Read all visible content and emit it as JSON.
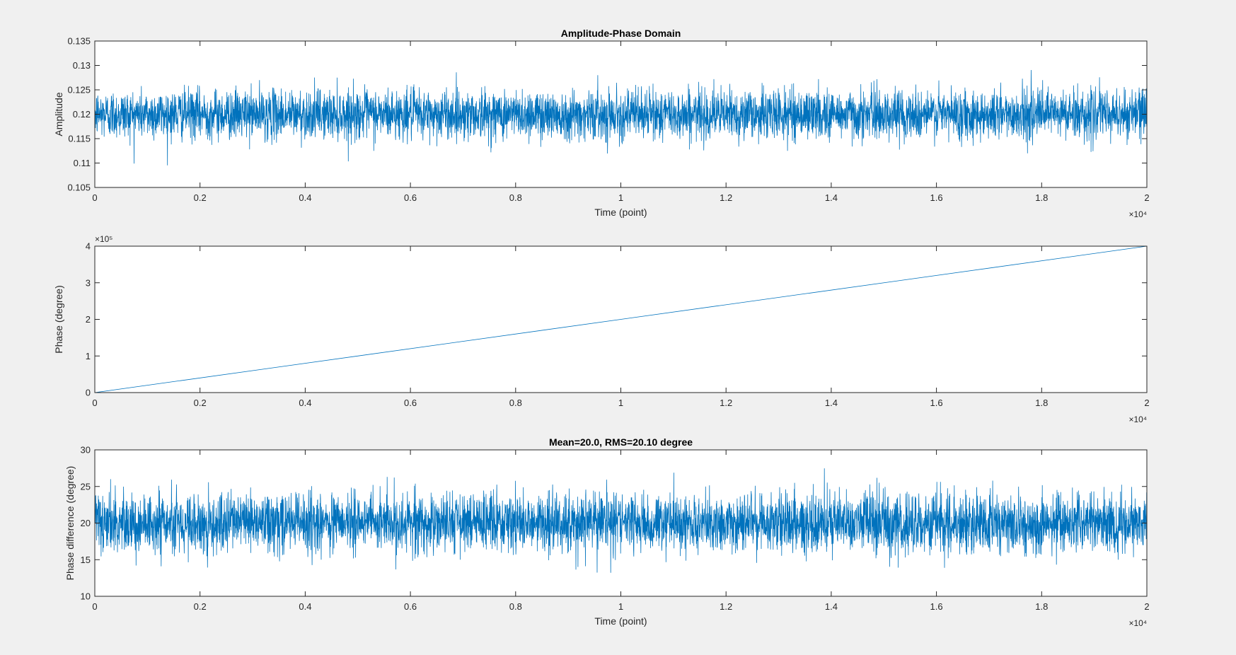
{
  "window": {
    "background": "#f0f0f0"
  },
  "colors": {
    "series": "#0072bd",
    "axes": "#262626",
    "plot_background": "#ffffff"
  },
  "chart_data": [
    {
      "type": "line",
      "title": "Amplitude-Phase Domain",
      "xlabel": "Time (point)",
      "ylabel": "Amplitude",
      "xlim": [
        0,
        20000
      ],
      "ylim": [
        0.105,
        0.135
      ],
      "x_exponent_label": "×10⁴",
      "y_exponent_label": "",
      "xticks": [
        0,
        2000,
        4000,
        6000,
        8000,
        10000,
        12000,
        14000,
        16000,
        18000,
        20000
      ],
      "xtick_labels": [
        "0",
        "0.2",
        "0.4",
        "0.6",
        "0.8",
        "1",
        "1.2",
        "1.4",
        "1.6",
        "1.8",
        "2"
      ],
      "yticks": [
        0.105,
        0.11,
        0.115,
        0.12,
        0.125,
        0.13,
        0.135
      ],
      "ytick_labels": [
        "0.105",
        "0.11",
        "0.115",
        "0.12",
        "0.125",
        "0.13",
        "0.135"
      ],
      "grid": false,
      "series": [
        {
          "kind": "noise",
          "mean": 0.12,
          "std": 0.0025,
          "min": 0.1062,
          "max": 0.1337,
          "n_points": 20000
        }
      ]
    },
    {
      "type": "line",
      "title": "",
      "xlabel": "",
      "ylabel": "Phase (degree)",
      "xlim": [
        0,
        20000
      ],
      "ylim": [
        0,
        400000
      ],
      "x_exponent_label": "×10⁴",
      "y_exponent_label": "×10⁵",
      "xticks": [
        0,
        2000,
        4000,
        6000,
        8000,
        10000,
        12000,
        14000,
        16000,
        18000,
        20000
      ],
      "xtick_labels": [
        "0",
        "0.2",
        "0.4",
        "0.6",
        "0.8",
        "1",
        "1.2",
        "1.4",
        "1.6",
        "1.8",
        "2"
      ],
      "yticks": [
        0,
        100000,
        200000,
        300000,
        400000
      ],
      "ytick_labels": [
        "0",
        "1",
        "2",
        "3",
        "4"
      ],
      "grid": false,
      "series": [
        {
          "kind": "linear",
          "x": [
            0,
            20000
          ],
          "y": [
            0,
            400000
          ]
        }
      ]
    },
    {
      "type": "line",
      "title": "Mean=20.0, RMS=20.10 degree",
      "xlabel": "Time (point)",
      "ylabel": "Phase difference (degree)",
      "xlim": [
        0,
        20000
      ],
      "ylim": [
        10,
        30
      ],
      "x_exponent_label": "×10⁴",
      "y_exponent_label": "",
      "xticks": [
        0,
        2000,
        4000,
        6000,
        8000,
        10000,
        12000,
        14000,
        16000,
        18000,
        20000
      ],
      "xtick_labels": [
        "0",
        "0.2",
        "0.4",
        "0.6",
        "0.8",
        "1",
        "1.2",
        "1.4",
        "1.6",
        "1.8",
        "2"
      ],
      "yticks": [
        10,
        15,
        20,
        25,
        30
      ],
      "ytick_labels": [
        "10",
        "15",
        "20",
        "25",
        "30"
      ],
      "grid": false,
      "series": [
        {
          "kind": "noise",
          "mean": 20.0,
          "std": 2.0,
          "min": 12.3,
          "max": 28.0,
          "n_points": 20000
        }
      ]
    }
  ]
}
